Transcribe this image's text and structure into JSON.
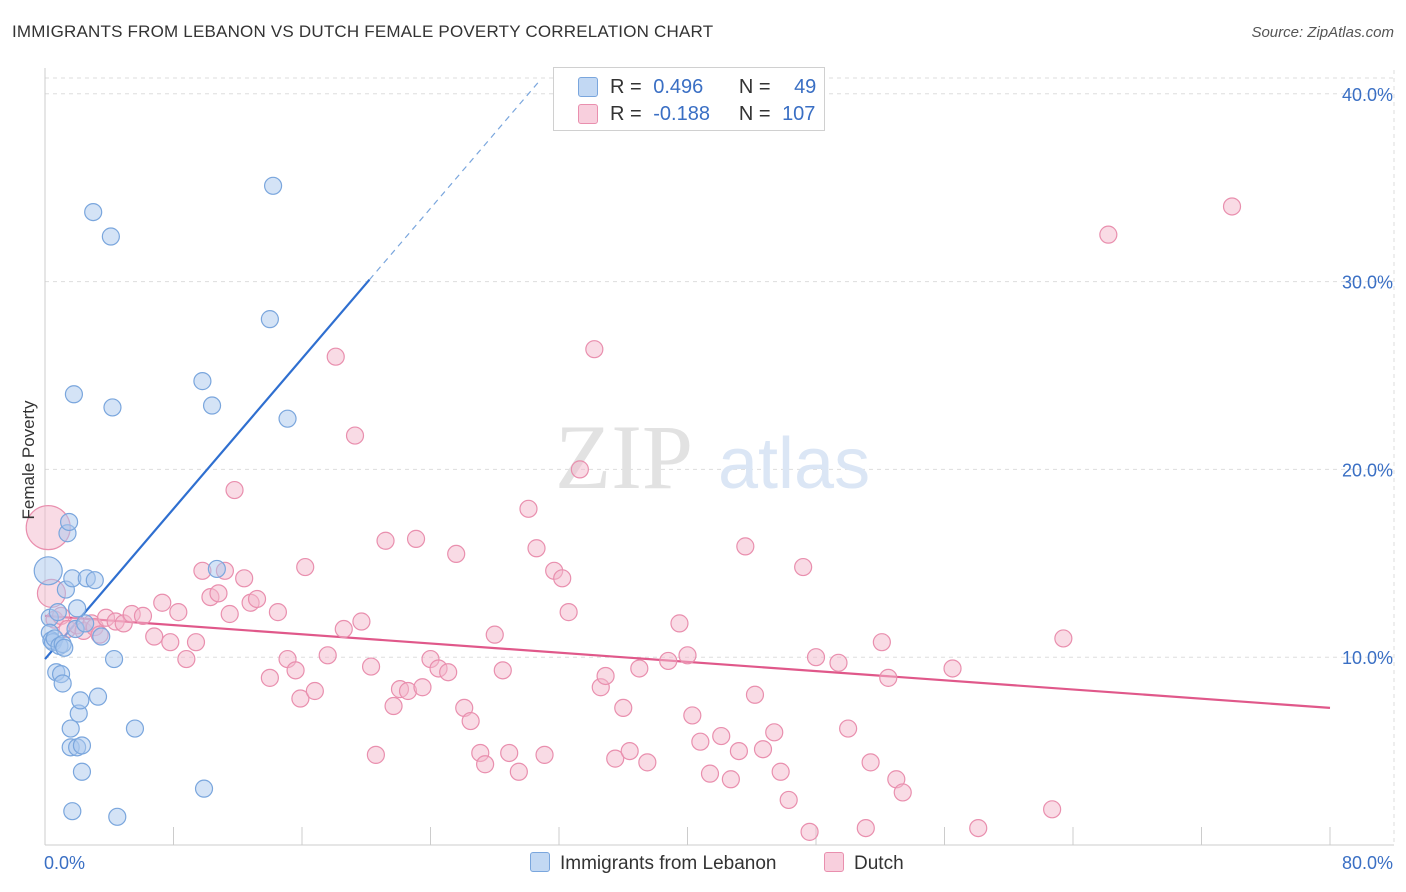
{
  "title": "IMMIGRANTS FROM LEBANON VS DUTCH FEMALE POVERTY CORRELATION CHART",
  "source": "Source: ZipAtlas.com",
  "watermark": {
    "zip": "ZIP",
    "atlas": "atlas"
  },
  "colors": {
    "blue_fill": "#a9c8ee",
    "blue_stroke": "#7aa6dd",
    "blue_line": "#2f6fd0",
    "pink_fill": "#f4b8cc",
    "pink_stroke": "#e98fae",
    "pink_line": "#e0588a",
    "tick_text": "#3a6fc4",
    "grid": "#dddddd"
  },
  "legend_box": [
    {
      "r_label": "R =",
      "r_value": "0.496",
      "n_label": "N =",
      "n_value": "49"
    },
    {
      "r_label": "R =",
      "r_value": "-0.188",
      "n_label": "N =",
      "n_value": "107"
    }
  ],
  "bottom_legend": [
    "Immigrants from Lebanon",
    "Dutch"
  ],
  "chart_data": {
    "type": "scatter",
    "title": "IMMIGRANTS FROM LEBANON VS DUTCH FEMALE POVERTY CORRELATION CHART",
    "xlabel": "",
    "ylabel": "Female Poverty",
    "xlim": [
      0,
      80
    ],
    "ylim": [
      0,
      41
    ],
    "x_tick_labels": [
      "0.0%",
      "80.0%"
    ],
    "y_ticks": [
      10,
      20,
      30,
      40
    ],
    "y_tick_labels": [
      "10.0%",
      "20.0%",
      "30.0%",
      "40.0%"
    ],
    "grid": "horizontal dashed",
    "legend_placement": "top-center and bottom",
    "series": [
      {
        "name": "Immigrants from Lebanon",
        "color": "#a9c8ee",
        "r": 0.496,
        "n": 49,
        "trend": {
          "x": [
            0,
            20.2
          ],
          "y": [
            9.9,
            30.1
          ],
          "dashed_to": [
            30,
            40
          ]
        },
        "points": [
          [
            0.2,
            14.6,
            2
          ],
          [
            0.3,
            12.1,
            1
          ],
          [
            0.3,
            11.3,
            1
          ],
          [
            0.4,
            10.9,
            1
          ],
          [
            0.5,
            10.8,
            1
          ],
          [
            0.6,
            11.0,
            1
          ],
          [
            0.7,
            9.2,
            1
          ],
          [
            0.8,
            12.4,
            1
          ],
          [
            0.9,
            10.6,
            1
          ],
          [
            1.0,
            9.1,
            1
          ],
          [
            1.1,
            10.7,
            1
          ],
          [
            1.1,
            8.6,
            1
          ],
          [
            1.2,
            10.5,
            1
          ],
          [
            1.3,
            13.6,
            1
          ],
          [
            1.4,
            16.6,
            1
          ],
          [
            1.5,
            17.2,
            1
          ],
          [
            1.6,
            6.2,
            1
          ],
          [
            1.6,
            5.2,
            1
          ],
          [
            1.7,
            14.2,
            1
          ],
          [
            1.7,
            1.8,
            1
          ],
          [
            1.8,
            24.0,
            1
          ],
          [
            1.9,
            11.5,
            1
          ],
          [
            2.0,
            12.6,
            1
          ],
          [
            2.0,
            5.2,
            1
          ],
          [
            2.1,
            7.0,
            1
          ],
          [
            2.2,
            7.7,
            1
          ],
          [
            2.3,
            5.3,
            1
          ],
          [
            2.3,
            3.9,
            1
          ],
          [
            2.5,
            11.8,
            1
          ],
          [
            2.6,
            14.2,
            1
          ],
          [
            3.0,
            33.7,
            1
          ],
          [
            3.1,
            14.1,
            1
          ],
          [
            3.3,
            7.9,
            1
          ],
          [
            3.5,
            11.1,
            1
          ],
          [
            4.1,
            32.4,
            1
          ],
          [
            4.2,
            23.3,
            1
          ],
          [
            4.3,
            9.9,
            1
          ],
          [
            4.5,
            1.5,
            1
          ],
          [
            5.6,
            6.2,
            1
          ],
          [
            9.8,
            24.7,
            1
          ],
          [
            9.9,
            3.0,
            1
          ],
          [
            10.4,
            23.4,
            1
          ],
          [
            10.7,
            14.7,
            1
          ],
          [
            14.0,
            28.0,
            1
          ],
          [
            14.2,
            35.1,
            1
          ],
          [
            15.1,
            22.7,
            1
          ]
        ]
      },
      {
        "name": "Dutch",
        "color": "#f4b8cc",
        "r": -0.188,
        "n": 107,
        "trend": {
          "x": [
            0,
            80
          ],
          "y": [
            12.2,
            7.3
          ]
        },
        "points": [
          [
            0.2,
            16.9,
            3
          ],
          [
            0.4,
            13.4,
            2
          ],
          [
            0.6,
            12.0,
            1
          ],
          [
            1.0,
            12.2,
            1
          ],
          [
            1.4,
            11.5,
            1
          ],
          [
            2.0,
            11.7,
            1
          ],
          [
            2.4,
            11.4,
            1
          ],
          [
            2.9,
            11.8,
            1
          ],
          [
            3.1,
            11.6,
            1
          ],
          [
            3.4,
            11.2,
            1
          ],
          [
            3.8,
            12.1,
            1
          ],
          [
            4.4,
            11.9,
            1
          ],
          [
            4.9,
            11.8,
            1
          ],
          [
            5.4,
            12.3,
            1
          ],
          [
            6.1,
            12.2,
            1
          ],
          [
            6.8,
            11.1,
            1
          ],
          [
            7.3,
            12.9,
            1
          ],
          [
            7.8,
            10.8,
            1
          ],
          [
            8.3,
            12.4,
            1
          ],
          [
            8.8,
            9.9,
            1
          ],
          [
            9.4,
            10.8,
            1
          ],
          [
            9.8,
            14.6,
            1
          ],
          [
            10.3,
            13.2,
            1
          ],
          [
            10.8,
            13.4,
            1
          ],
          [
            11.2,
            14.6,
            1
          ],
          [
            11.5,
            12.3,
            1
          ],
          [
            11.8,
            18.9,
            1
          ],
          [
            12.4,
            14.2,
            1
          ],
          [
            12.8,
            12.9,
            1
          ],
          [
            13.2,
            13.1,
            1
          ],
          [
            14.0,
            8.9,
            1
          ],
          [
            14.5,
            12.4,
            1
          ],
          [
            15.1,
            9.9,
            1
          ],
          [
            15.6,
            9.3,
            1
          ],
          [
            15.9,
            7.8,
            1
          ],
          [
            16.2,
            14.8,
            1
          ],
          [
            16.8,
            8.2,
            1
          ],
          [
            17.6,
            10.1,
            1
          ],
          [
            18.1,
            26.0,
            1
          ],
          [
            18.6,
            11.5,
            1
          ],
          [
            19.3,
            21.8,
            1
          ],
          [
            19.7,
            11.9,
            1
          ],
          [
            20.3,
            9.5,
            1
          ],
          [
            20.6,
            4.8,
            1
          ],
          [
            21.2,
            16.2,
            1
          ],
          [
            21.7,
            7.4,
            1
          ],
          [
            22.1,
            8.3,
            1
          ],
          [
            22.6,
            8.2,
            1
          ],
          [
            23.1,
            16.3,
            1
          ],
          [
            23.5,
            8.4,
            1
          ],
          [
            24.0,
            9.9,
            1
          ],
          [
            24.5,
            9.4,
            1
          ],
          [
            25.1,
            9.2,
            1
          ],
          [
            25.6,
            15.5,
            1
          ],
          [
            26.1,
            7.3,
            1
          ],
          [
            26.5,
            6.6,
            1
          ],
          [
            27.1,
            4.9,
            1
          ],
          [
            27.4,
            4.3,
            1
          ],
          [
            28.0,
            11.2,
            1
          ],
          [
            28.5,
            9.3,
            1
          ],
          [
            28.9,
            4.9,
            1
          ],
          [
            29.5,
            3.9,
            1
          ],
          [
            30.1,
            17.9,
            1
          ],
          [
            30.6,
            15.8,
            1
          ],
          [
            31.1,
            4.8,
            1
          ],
          [
            31.7,
            14.6,
            1
          ],
          [
            32.2,
            14.2,
            1
          ],
          [
            32.6,
            12.4,
            1
          ],
          [
            33.3,
            20.0,
            1
          ],
          [
            34.2,
            26.4,
            1
          ],
          [
            34.6,
            8.4,
            1
          ],
          [
            34.9,
            9.0,
            1
          ],
          [
            35.5,
            4.6,
            1
          ],
          [
            36.0,
            7.3,
            1
          ],
          [
            36.4,
            5.0,
            1
          ],
          [
            37.0,
            9.4,
            1
          ],
          [
            37.5,
            4.4,
            1
          ],
          [
            38.8,
            9.8,
            1
          ],
          [
            39.5,
            11.8,
            1
          ],
          [
            40.0,
            10.1,
            1
          ],
          [
            40.3,
            6.9,
            1
          ],
          [
            40.8,
            5.5,
            1
          ],
          [
            41.4,
            3.8,
            1
          ],
          [
            42.1,
            5.8,
            1
          ],
          [
            42.7,
            3.5,
            1
          ],
          [
            43.2,
            5.0,
            1
          ],
          [
            43.6,
            15.9,
            1
          ],
          [
            44.2,
            8.0,
            1
          ],
          [
            44.7,
            5.1,
            1
          ],
          [
            45.4,
            6.0,
            1
          ],
          [
            45.8,
            3.9,
            1
          ],
          [
            46.3,
            2.4,
            1
          ],
          [
            47.2,
            14.8,
            1
          ],
          [
            47.6,
            0.7,
            1
          ],
          [
            48.0,
            10.0,
            1
          ],
          [
            49.4,
            9.7,
            1
          ],
          [
            50.0,
            6.2,
            1
          ],
          [
            51.1,
            0.9,
            1
          ],
          [
            51.4,
            4.4,
            1
          ],
          [
            52.1,
            10.8,
            1
          ],
          [
            52.5,
            8.9,
            1
          ],
          [
            53.0,
            3.5,
            1
          ],
          [
            53.4,
            2.8,
            1
          ],
          [
            56.5,
            9.4,
            1
          ],
          [
            58.1,
            0.9,
            1
          ],
          [
            62.7,
            1.9,
            1
          ],
          [
            63.4,
            11.0,
            1
          ],
          [
            66.2,
            32.5,
            1
          ],
          [
            73.9,
            34.0,
            1
          ]
        ]
      }
    ]
  }
}
